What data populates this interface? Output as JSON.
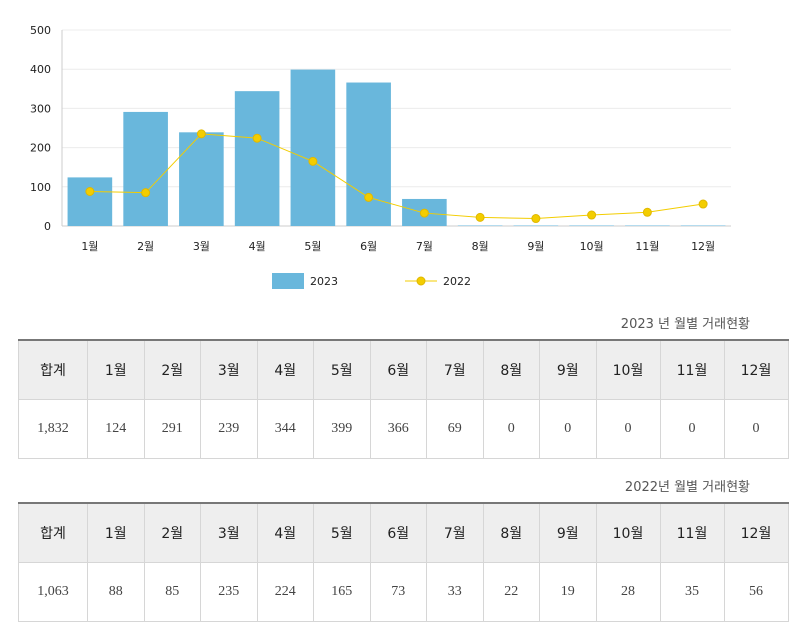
{
  "chart_data": {
    "type": "bar",
    "categories": [
      "1월",
      "2월",
      "3월",
      "4월",
      "5월",
      "6월",
      "7월",
      "8월",
      "9월",
      "10월",
      "11월",
      "12월"
    ],
    "series": [
      {
        "name": "2023",
        "kind": "bar",
        "color": "#69b7dc",
        "values": [
          124,
          291,
          239,
          344,
          399,
          366,
          69,
          0,
          0,
          0,
          0,
          0
        ]
      },
      {
        "name": "2022",
        "kind": "line",
        "color": "#f3cd00",
        "values": [
          88,
          85,
          235,
          224,
          165,
          73,
          33,
          22,
          19,
          28,
          35,
          56
        ]
      }
    ],
    "yticks": [
      0,
      100,
      200,
      300,
      400,
      500
    ],
    "ylim": [
      0,
      500
    ],
    "grid": true,
    "legend": "bottom-center"
  },
  "table2023": {
    "caption": "2023 년 월별 거래현황",
    "headers": [
      "합계",
      "1월",
      "2월",
      "3월",
      "4월",
      "5월",
      "6월",
      "7월",
      "8월",
      "9월",
      "10월",
      "11월",
      "12월"
    ],
    "values": [
      "1,832",
      "124",
      "291",
      "239",
      "344",
      "399",
      "366",
      "69",
      "0",
      "0",
      "0",
      "0",
      "0"
    ]
  },
  "table2022": {
    "caption": "2022년 월별 거래현황",
    "headers": [
      "합계",
      "1월",
      "2월",
      "3월",
      "4월",
      "5월",
      "6월",
      "7월",
      "8월",
      "9월",
      "10월",
      "11월",
      "12월"
    ],
    "values": [
      "1,063",
      "88",
      "85",
      "235",
      "224",
      "165",
      "73",
      "33",
      "22",
      "19",
      "28",
      "35",
      "56"
    ]
  }
}
